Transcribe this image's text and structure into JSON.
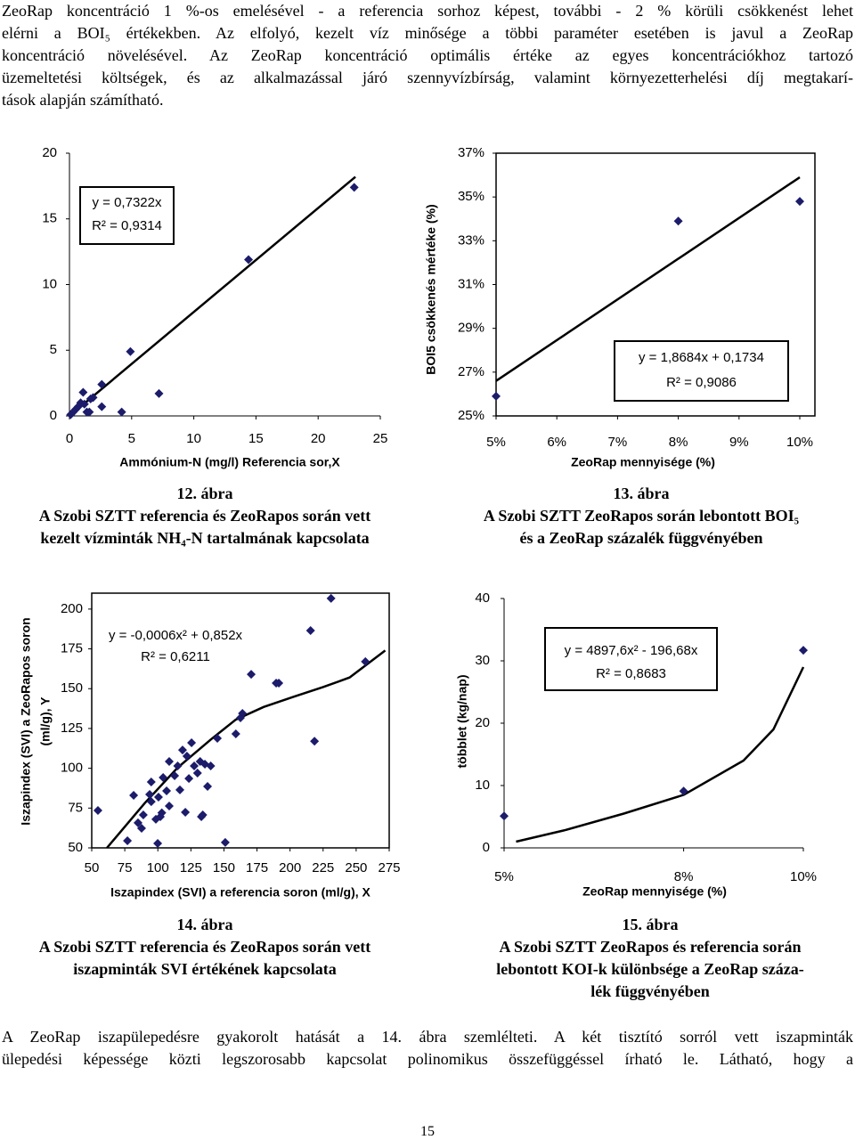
{
  "paragraph_top": [
    "ZeoRap koncentráció 1 %-os emelésével - a referencia sorhoz képest, további - 2 % körüli csökkenést lehet",
    "elérni a BOI₅ értékekben. Az elfolyó, kezelt víz minősége a többi paraméter esetében is javul a ZeoRap",
    "koncentráció növelésével. Az ZeoRap koncentráció optimális értéke az egyes koncentrációkhoz tartozó",
    "üzemeltetési költségek, és az alkalmazással járó szennyvízbírság, valamint környezetterhelési díj megtakarí-",
    "tások alapján számítható."
  ],
  "figures": [
    {
      "chart": {
        "type": "scatter",
        "x_label": "Ammónium-N (mg/l) Referencia sor,X",
        "xlim": [
          0,
          25
        ],
        "ylim": [
          0,
          20
        ],
        "xticks": [
          0,
          5,
          10,
          15,
          20,
          25
        ],
        "yticks": [
          0,
          5,
          10,
          15,
          20
        ],
        "series": [
          {
            "color": "#1c1c6b",
            "x": [
              22.9,
              14.4,
              4.9,
              7.2,
              4.2,
              2.6,
              2.6,
              1.7,
              1.1,
              0.9,
              0.5,
              0.1,
              1.4,
              0.7,
              1.9,
              1.6,
              0.3,
              1.2
            ],
            "y": [
              17.4,
              11.9,
              4.9,
              1.7,
              0.3,
              2.4,
              0.7,
              1.3,
              1.8,
              1.0,
              0.5,
              0.1,
              0.3,
              0.7,
              1.4,
              0.3,
              0.3,
              0.9
            ]
          }
        ],
        "trend": {
          "x": [
            0,
            23
          ],
          "y": [
            0,
            18.2
          ]
        },
        "equation": [
          "y = 0,7322x",
          "R² = 0,9314"
        ]
      },
      "caption": [
        "12. ábra",
        "A Szobi SZTT referencia és ZeoRapos során vett",
        "kezelt vízminták NH₄-N tartalmának kapcsolata"
      ]
    },
    {
      "chart": {
        "type": "scatter",
        "x_label": "ZeoRap mennyisége (%)",
        "y_label": "BOI5 csökkenés mértéke (%)",
        "xlim": [
          5,
          10
        ],
        "ylim": [
          25,
          37
        ],
        "xticks": [
          {
            "value": 5,
            "label": "5%"
          },
          {
            "value": 6,
            "label": "6%"
          },
          {
            "value": 7,
            "label": "7%"
          },
          {
            "value": 8,
            "label": "8%"
          },
          {
            "value": 9,
            "label": "9%"
          },
          {
            "value": 10,
            "label": "10%"
          }
        ],
        "yticks": [
          {
            "value": 25,
            "label": "25%"
          },
          {
            "value": 27,
            "label": "27%"
          },
          {
            "value": 29,
            "label": "29%"
          },
          {
            "value": 31,
            "label": "31%"
          },
          {
            "value": 33,
            "label": "33%"
          },
          {
            "value": 35,
            "label": "35%"
          },
          {
            "value": 37,
            "label": "37%"
          }
        ],
        "series": [
          {
            "color": "#1c1c6b",
            "x": [
              5,
              8,
              10
            ],
            "y": [
              25.9,
              33.9,
              34.8
            ]
          }
        ],
        "trend": {
          "x": [
            5,
            10
          ],
          "y": [
            26.6,
            35.9
          ]
        },
        "equation": [
          "y = 1,8684x + 0,1734",
          "R² = 0,9086"
        ]
      },
      "caption": [
        "13. ábra",
        "A Szobi SZTT ZeoRapos során lebontott BOI₅",
        "és a ZeoRap százalék függvényében"
      ]
    },
    {
      "chart": {
        "type": "scatter",
        "x_label": "Iszapindex (SVI) a referencia soron (ml/g), X",
        "y_label": [
          "Iszapindex (SVI) a ZeoRapos soron",
          "(ml/g), Y"
        ],
        "xlim": [
          50,
          275
        ],
        "ylim": [
          50,
          210
        ],
        "xticks": [
          50,
          75,
          100,
          125,
          150,
          175,
          200,
          225,
          250,
          275
        ],
        "yticks": [
          50,
          75,
          100,
          125,
          150,
          175,
          200
        ],
        "series": [
          {
            "color": "#1c1c6b",
            "x": [
              231,
              215.5,
              257,
              170.6,
              191.5,
              189.5,
              164,
              162.5,
              159,
              218.5,
              145,
              125.5,
              118.7,
              122,
              108.6,
              115,
              127.5,
              132,
              135.6,
              140,
              130,
              123.5,
              112.7,
              116.7,
              104,
              95,
              93.8,
              100.5,
              106.6,
              137.6,
              95,
              103,
              108.6,
              120.8,
              132.9,
              134,
              98.5,
              89,
              101.9,
              87.7,
              81.7,
              85,
              54.7,
              77,
              99.9,
              151
            ],
            "y": [
              206.7,
              186.5,
              167,
              159,
              153.5,
              153.5,
              134.5,
              131.7,
              121.6,
              117,
              118.8,
              116,
              111.5,
              107.6,
              104.3,
              101.5,
              101.5,
              104.3,
              102.6,
              101.5,
              97,
              93.6,
              95.3,
              86.4,
              94.2,
              91.4,
              83.6,
              81.9,
              85.8,
              88.6,
              79,
              72,
              76.3,
              72.4,
              69.6,
              70.7,
              68,
              70.7,
              69.6,
              62.3,
              83,
              65.7,
              73.5,
              54.5,
              52.8,
              53.4
            ]
          }
        ],
        "trend": {
          "x": [
            61.5,
            90,
            115,
            140,
            159,
            180,
            203,
            225,
            245,
            272
          ],
          "y": [
            50,
            78,
            100.4,
            118,
            130.6,
            138.5,
            145,
            151,
            157,
            174
          ]
        },
        "equation": [
          "y = -0,0006x² + 0,852x",
          "R² = 0,6211"
        ]
      },
      "caption": [
        "14. ábra",
        "A Szobi SZTT referencia és ZeoRapos során vett",
        "iszapminták SVI értékének kapcsolata"
      ]
    },
    {
      "chart": {
        "type": "scatter",
        "x_label": "ZeoRap mennyisége (%)",
        "y_label": "többlet (kg/nap)",
        "xlim": [
          5,
          10
        ],
        "ylim": [
          0,
          40
        ],
        "xticks": [
          {
            "value": 5,
            "label": "5%"
          },
          {
            "value": 8,
            "label": "8%"
          },
          {
            "value": 10,
            "label": "10%"
          }
        ],
        "yticks": [
          0,
          10,
          20,
          30,
          40
        ],
        "series": [
          {
            "color": "#1c1c6b",
            "x": [
              5,
              8,
              10
            ],
            "y": [
              5.1,
              9.1,
              31.7
            ]
          }
        ],
        "trend": {
          "x": [
            5.2,
            6,
            7,
            8,
            9,
            9.5,
            10
          ],
          "y": [
            1,
            2.8,
            5.5,
            8.5,
            14,
            19,
            29
          ]
        },
        "equation": [
          "y = 4897,6x² - 196,68x",
          "R² = 0,8683"
        ]
      },
      "caption": [
        "15. ábra",
        "A Szobi SZTT ZeoRapos és referencia során",
        "lebontott KOI-k különbsége a ZeoRap száza-",
        "lék függvényében"
      ]
    }
  ],
  "paragraph_bottom": [
    "A  ZeoRap iszapülepedésre gyakorolt hatását a 14. ábra szemlélteti. A két tisztító sorról vett iszapminták",
    "ülepedési képessége közti legszorosabb kapcsolat polinomikus összefüggéssel írható le.  Látható, hogy a"
  ],
  "page_number": "15"
}
